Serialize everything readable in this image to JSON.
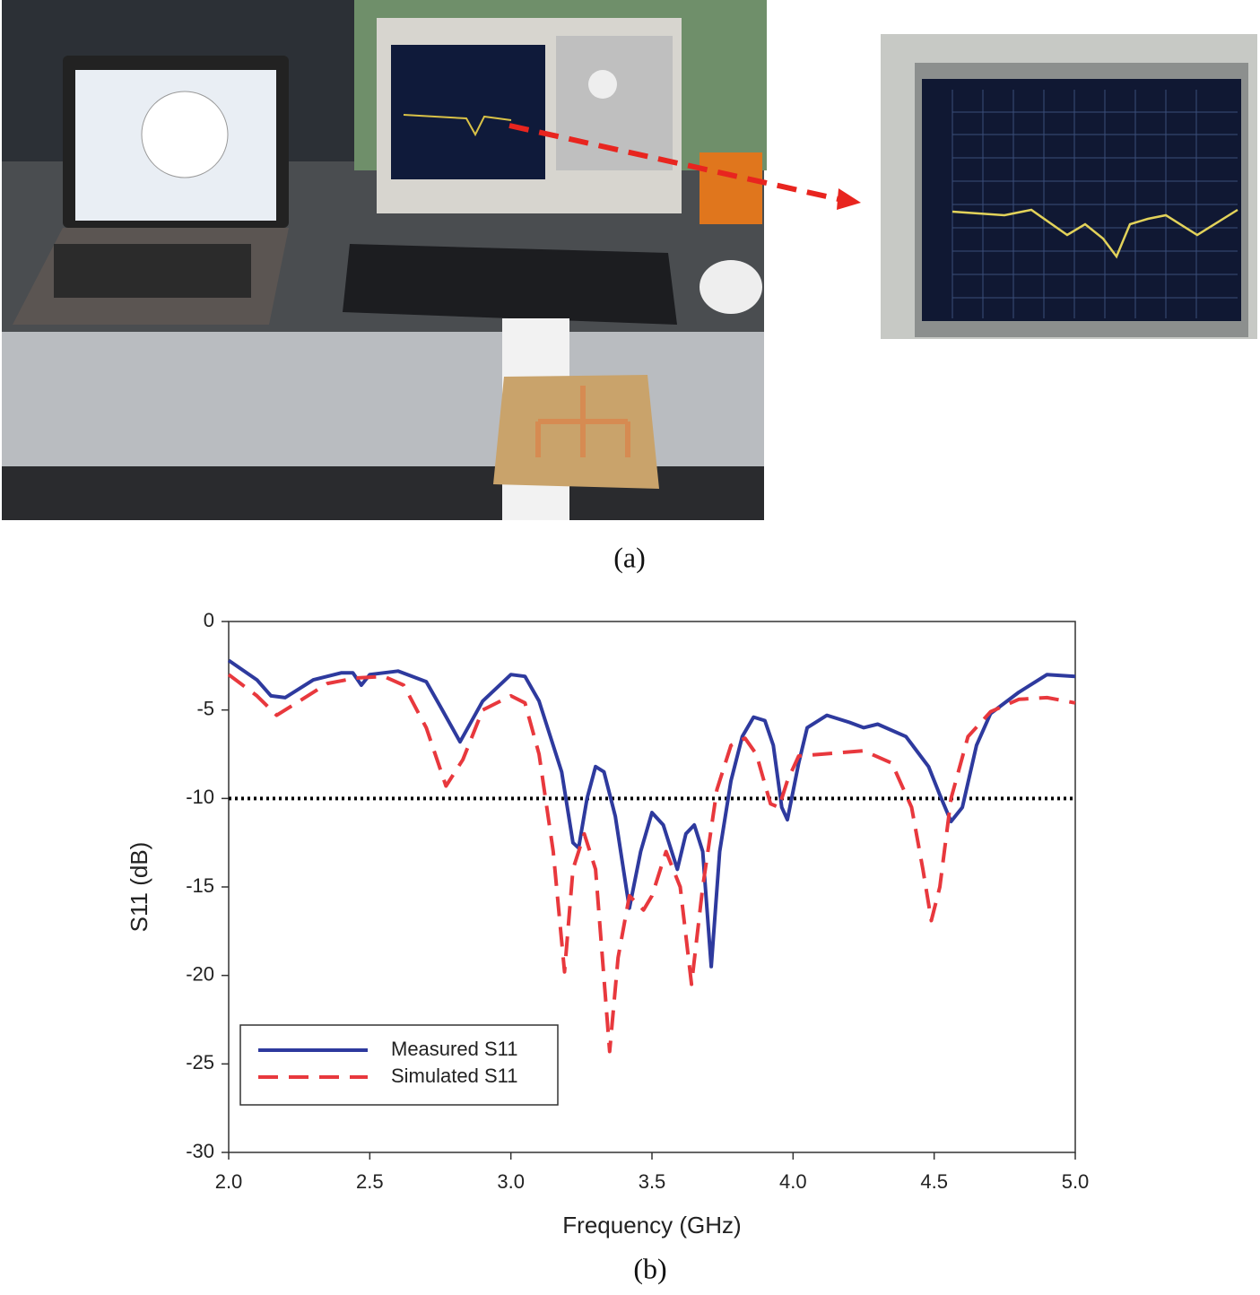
{
  "captions": {
    "a": "(a)",
    "b": "(b)"
  },
  "chart_data": {
    "type": "line",
    "xlabel": "Frequency (GHz)",
    "ylabel": "S11 (dB)",
    "xlim": [
      2,
      5
    ],
    "ylim": [
      -30,
      0
    ],
    "xticks": [
      {
        "value": 2,
        "label": "2.0"
      },
      2.5,
      {
        "value": 3,
        "label": "3.0"
      },
      3.5,
      {
        "value": 4,
        "label": "4.0"
      },
      4.5,
      {
        "value": 5,
        "label": "5.0"
      }
    ],
    "yticks": [
      0,
      -5,
      -10,
      -15,
      -20,
      -25,
      -30
    ],
    "reference_line": {
      "value": -10,
      "color": "#000000"
    },
    "legend": "lower left",
    "series": [
      {
        "name": "Measured S11",
        "color": "#2e3a9e",
        "dash": false,
        "x": [
          2.0,
          2.1,
          2.15,
          2.2,
          2.3,
          2.4,
          2.44,
          2.47,
          2.5,
          2.6,
          2.7,
          2.75,
          2.82,
          2.9,
          3.0,
          3.05,
          3.1,
          3.18,
          3.22,
          3.24,
          3.27,
          3.3,
          3.33,
          3.37,
          3.42,
          3.46,
          3.5,
          3.54,
          3.59,
          3.62,
          3.65,
          3.68,
          3.71,
          3.74,
          3.78,
          3.82,
          3.86,
          3.9,
          3.93,
          3.96,
          3.98,
          4.02,
          4.05,
          4.12,
          4.2,
          4.25,
          4.3,
          4.4,
          4.48,
          4.52,
          4.56,
          4.6,
          4.65,
          4.7,
          4.8,
          4.9,
          5.0
        ],
        "values": [
          -2.2,
          -3.3,
          -4.2,
          -4.3,
          -3.3,
          -2.9,
          -2.9,
          -3.6,
          -3.0,
          -2.8,
          -3.4,
          -4.8,
          -6.8,
          -4.5,
          -3.0,
          -3.1,
          -4.5,
          -8.5,
          -12.5,
          -12.8,
          -10,
          -8.2,
          -8.5,
          -11,
          -16.2,
          -13,
          -10.8,
          -11.5,
          -14,
          -12,
          -11.5,
          -13,
          -19.5,
          -13,
          -9,
          -6.5,
          -5.4,
          -5.6,
          -7,
          -10.5,
          -11.2,
          -8,
          -6,
          -5.3,
          -5.7,
          -6,
          -5.8,
          -6.5,
          -8.2,
          -9.8,
          -11.3,
          -10.5,
          -7,
          -5.2,
          -4,
          -3,
          -3.1
        ]
      },
      {
        "name": "Simulated S11",
        "color": "#e8383d",
        "dash": true,
        "x": [
          2.0,
          2.1,
          2.17,
          2.25,
          2.35,
          2.45,
          2.55,
          2.62,
          2.7,
          2.77,
          2.83,
          2.9,
          3.0,
          3.05,
          3.1,
          3.15,
          3.19,
          3.22,
          3.26,
          3.3,
          3.35,
          3.38,
          3.42,
          3.47,
          3.5,
          3.55,
          3.6,
          3.64,
          3.68,
          3.73,
          3.78,
          3.83,
          3.87,
          3.92,
          3.95,
          3.98,
          4.02,
          4.1,
          4.25,
          4.35,
          4.42,
          4.46,
          4.49,
          4.52,
          4.56,
          4.62,
          4.7,
          4.8,
          4.9,
          5.0
        ],
        "values": [
          -3.0,
          -4.2,
          -5.3,
          -4.5,
          -3.5,
          -3.2,
          -3.1,
          -3.6,
          -6,
          -9.3,
          -7.8,
          -5,
          -4.2,
          -4.6,
          -7.5,
          -13,
          -19.8,
          -14,
          -12,
          -14,
          -24.3,
          -19,
          -15.5,
          -16.3,
          -15.5,
          -13,
          -15,
          -20.5,
          -15,
          -9.5,
          -7,
          -6.6,
          -7.5,
          -10.3,
          -10.5,
          -9,
          -7.6,
          -7.5,
          -7.3,
          -8,
          -10.5,
          -14,
          -16.9,
          -15,
          -10,
          -6.5,
          -5.1,
          -4.4,
          -4.3,
          -4.6
        ]
      }
    ]
  }
}
